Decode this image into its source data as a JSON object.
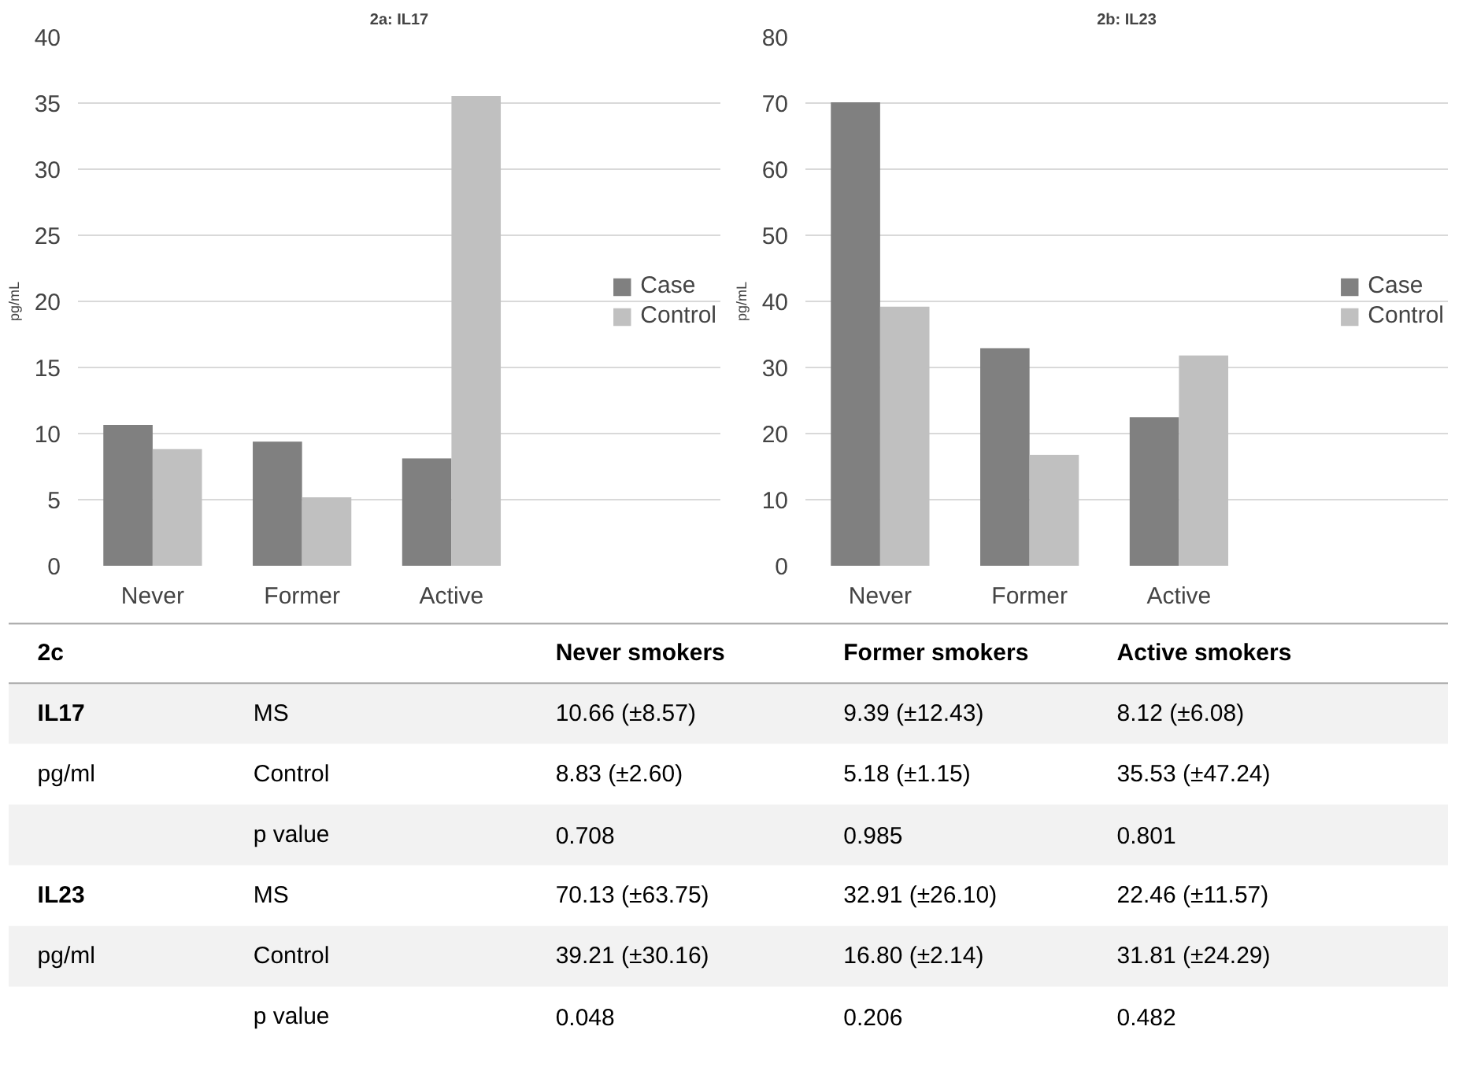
{
  "chart_data": [
    {
      "type": "bar",
      "title": "2a: IL17",
      "ylabel": "pg/mL",
      "categories": [
        "Never",
        "Former",
        "Active"
      ],
      "series": [
        {
          "name": "Case",
          "color": "#808080",
          "values": [
            10.66,
            9.39,
            8.12
          ]
        },
        {
          "name": "Control",
          "color": "#c0c0c0",
          "values": [
            8.83,
            5.18,
            35.53
          ]
        }
      ],
      "ylim": [
        0,
        40
      ],
      "yticks": [
        0,
        5,
        10,
        15,
        20,
        25,
        30,
        35,
        40
      ],
      "grid": "y",
      "legend": "right"
    },
    {
      "type": "bar",
      "title": "2b: IL23",
      "ylabel": "pg/mL",
      "categories": [
        "Never",
        "Former",
        "Active"
      ],
      "series": [
        {
          "name": "Case",
          "color": "#808080",
          "values": [
            70.13,
            32.91,
            22.46
          ]
        },
        {
          "name": "Control",
          "color": "#c0c0c0",
          "values": [
            39.21,
            16.8,
            31.81
          ]
        }
      ],
      "ylim": [
        0,
        80
      ],
      "yticks": [
        0,
        10,
        20,
        30,
        40,
        50,
        60,
        70,
        80
      ],
      "grid": "y",
      "legend": "right"
    },
    {
      "type": "other",
      "title": "2c",
      "categories": [
        "Never smokers",
        "Former smokers",
        "Active smokers"
      ],
      "annotations": [
        "IL17",
        "MS",
        "10.66 (±8.57)",
        "9.39 (±12.43)",
        "8.12 (±6.08)",
        "pg/ml",
        "Control",
        "8.83 (±2.60)",
        "5.18 (±1.15)",
        "35.53 (±47.24)",
        null,
        "p value",
        "0.708",
        "0.985",
        "0.801",
        "IL23",
        "MS",
        "70.13 (±63.75)",
        "32.91 (±26.10)",
        "22.46 (±11.57)",
        "pg/ml",
        "Control",
        "39.21 (±30.16)",
        "16.80 (±2.14)",
        "31.81 (±24.29)",
        null,
        "p value",
        "0.048",
        "0.206",
        "0.482"
      ]
    }
  ]
}
